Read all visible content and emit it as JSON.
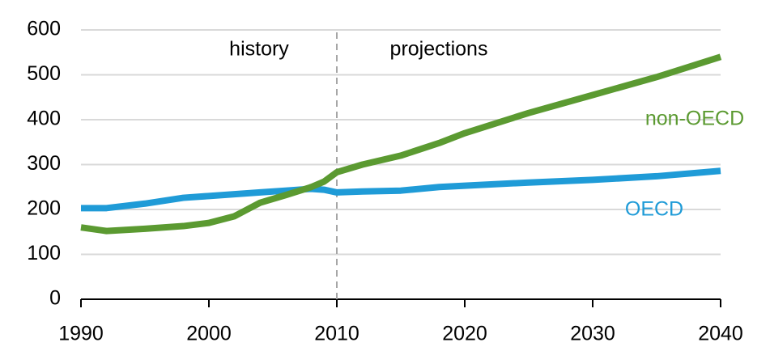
{
  "chart_data": {
    "type": "line",
    "annotations": [
      "history",
      "projections"
    ],
    "x": [
      1990,
      1992,
      1995,
      1998,
      2000,
      2002,
      2003,
      2004,
      2006,
      2008,
      2009,
      2010,
      2012,
      2015,
      2018,
      2020,
      2025,
      2030,
      2035,
      2040
    ],
    "series": [
      {
        "name": "OECD",
        "color": "#1f9bd7",
        "values": [
          203,
          203,
          213,
          226,
          230,
          234,
          236,
          238,
          242,
          246,
          244,
          238,
          240,
          242,
          250,
          253,
          260,
          266,
          274,
          286
        ]
      },
      {
        "name": "non-OECD",
        "color": "#5b9a31",
        "values": [
          160,
          152,
          157,
          163,
          170,
          185,
          200,
          215,
          232,
          250,
          262,
          283,
          300,
          320,
          348,
          370,
          415,
          455,
          495,
          540
        ]
      }
    ],
    "xlim": [
      1990,
      2040
    ],
    "xticks": [
      1990,
      2000,
      2010,
      2020,
      2030,
      2040
    ],
    "ylim": [
      0,
      600
    ],
    "yticks": [
      0,
      100,
      200,
      300,
      400,
      500,
      600
    ],
    "grid": true,
    "divider_x": 2010
  }
}
